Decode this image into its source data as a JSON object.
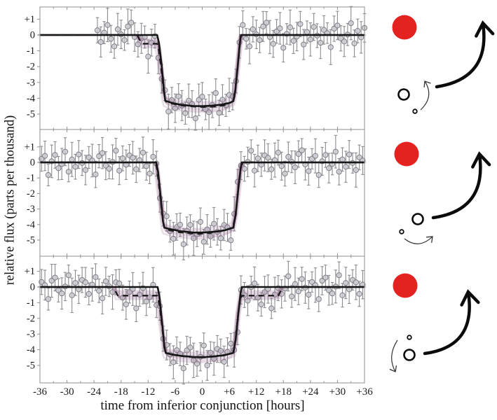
{
  "figure": {
    "xlabel": "time from inferior conjunction [hours]",
    "ylabel": "relative flux (parts per thousand)"
  },
  "colors": {
    "star_red": "#e42320",
    "point_fill": "#c9cad1",
    "point_stroke": "#7f7f86",
    "errorbar": "#8b8b91",
    "model_solid": "#141414",
    "model_dashed": "#1a1a1a",
    "frame": "#8f8f8f",
    "tick_text": "#1a1a1a",
    "band_colors": [
      "#8a5480",
      "#aa78a4",
      "#6d4167",
      "#b68bb1",
      "#94618c",
      "#7c4b74",
      "#a06b99",
      "#865179"
    ]
  },
  "chart_data": {
    "type": "scatter",
    "title": "",
    "xlabel": "time from inferior conjunction [hours]",
    "ylabel": "relative flux (parts per thousand)",
    "xlim": [
      -36,
      36
    ],
    "ylim": [
      -6,
      1.8
    ],
    "grid": false,
    "x_ticks": [
      -36,
      -30,
      -24,
      -18,
      -12,
      -6,
      0,
      6,
      12,
      18,
      24,
      30,
      36
    ],
    "x_tick_labels": [
      "-36",
      "-30",
      "-24",
      "-18",
      "-12",
      "-6",
      "0",
      "+6",
      "+12",
      "+18",
      "+24",
      "+30",
      "+36"
    ],
    "x_minor_ticks": [
      -33,
      -27,
      -21,
      -15,
      -9,
      -3,
      3,
      9,
      15,
      21,
      27,
      33
    ],
    "y_ticks": [
      1,
      0,
      -1,
      -2,
      -3,
      -4,
      -5
    ],
    "y_tick_labels": [
      "+1",
      "0",
      "-1",
      "-2",
      "-3",
      "-4",
      "-5"
    ],
    "panels": [
      {
        "name": "transit-1-moon-leading",
        "t_start": -23.25,
        "t_step": 0.75,
        "err_cycle": [
          0.8,
          0.95,
          0.7,
          1.05,
          0.85,
          0.75,
          1.0,
          0.9,
          0.65,
          1.1,
          0.8,
          0.9
        ],
        "flux": [
          0.3,
          -0.44,
          0.15,
          0.63,
          -0.24,
          -0.72,
          0.36,
          0.04,
          -0.32,
          0.54,
          0.78,
          -0.13,
          -0.59,
          -0.21,
          -0.13,
          -1.36,
          -0.48,
          -0.07,
          -1.45,
          -2.77,
          -3.49,
          -4.84,
          -4.11,
          -4.63,
          -3.88,
          -4.46,
          -4.94,
          -4.15,
          -4.37,
          -5.27,
          -4.1,
          -3.9,
          -4.7,
          -4.88,
          -4.42,
          -3.67,
          -4.92,
          -4.09,
          -4.45,
          -3.79,
          -3.88,
          -2.91,
          -0.46,
          0.63,
          -0.24,
          -0.72,
          0.36,
          0.04,
          -0.32,
          0.54,
          0.78,
          -0.13,
          -0.56,
          0.23,
          0.42,
          -0.81,
          0.07,
          0.48,
          -0.37,
          -0.1,
          0.69,
          -0.6,
          0.19,
          -0.28,
          0.51,
          -0.04,
          -0.49,
          0.32,
          0.12,
          -0.77,
          0.4,
          0.6,
          -0.21,
          -0.41,
          0.03,
          0.75,
          -0.53,
          0.26,
          -0.15,
          0.45
        ],
        "model_solid": [
          [
            -36,
            0
          ],
          [
            -10,
            0
          ],
          [
            -9.6,
            -0.5
          ],
          [
            -9,
            -1.9
          ],
          [
            -8.5,
            -3.5
          ],
          [
            -8.2,
            -4.15
          ],
          [
            -7,
            -4.27
          ],
          [
            -5,
            -4.4
          ],
          [
            -2,
            -4.49
          ],
          [
            0,
            -4.5
          ],
          [
            2,
            -4.47
          ],
          [
            4,
            -4.41
          ],
          [
            6,
            -4.3
          ],
          [
            6.9,
            -4.18
          ],
          [
            7.3,
            -3.6
          ],
          [
            7.8,
            -2.2
          ],
          [
            8.3,
            -0.6
          ],
          [
            8.6,
            0
          ],
          [
            36,
            0
          ]
        ],
        "model_dashed": [
          [
            -36,
            0
          ],
          [
            -14.4,
            0
          ],
          [
            -14,
            -0.25
          ],
          [
            -13.5,
            -0.5
          ],
          [
            -13,
            -0.55
          ],
          [
            -10,
            -0.55
          ],
          [
            -9.6,
            -1.0
          ],
          [
            -9,
            -2.4
          ],
          [
            -8.4,
            -3.9
          ],
          [
            -8.1,
            -4.2
          ],
          [
            -7,
            -4.32
          ],
          [
            -5,
            -4.44
          ],
          [
            -3,
            -4.5
          ],
          [
            -1,
            -4.54
          ],
          [
            1,
            -4.55
          ],
          [
            3,
            -4.52
          ],
          [
            5,
            -4.44
          ],
          [
            6.8,
            -4.2
          ],
          [
            7.3,
            -3.5
          ],
          [
            7.9,
            -1.9
          ],
          [
            8.4,
            -0.5
          ],
          [
            8.7,
            0
          ],
          [
            36,
            0
          ]
        ]
      },
      {
        "name": "transit-2-moon-crossing",
        "t_start": -35.65,
        "t_step": 0.75,
        "err_cycle": [
          0.8,
          0.95,
          0.7,
          1.05,
          0.85,
          0.75,
          1.0,
          0.9,
          0.65,
          1.1,
          0.8,
          0.9
        ],
        "flux": [
          0.23,
          0.42,
          -0.81,
          0.07,
          0.48,
          -0.37,
          -0.1,
          0.69,
          -0.6,
          0.19,
          -0.28,
          0.51,
          -0.04,
          -0.49,
          0.32,
          0.12,
          -0.77,
          0.4,
          0.6,
          -0.21,
          -0.41,
          0.03,
          0.75,
          -0.53,
          0.26,
          -0.15,
          0.45,
          0.3,
          -0.44,
          0.15,
          0.63,
          -0.24,
          -0.72,
          0.36,
          -0.08,
          -2.3,
          -3.29,
          -3.47,
          -4.43,
          -4.91,
          -4.16,
          -4.01,
          -5.27,
          -4.41,
          -4.02,
          -4.88,
          -4.62,
          -3.83,
          -5.11,
          -4.31,
          -4.76,
          -3.95,
          -4.47,
          -4.88,
          -4.03,
          -4.18,
          -5.01,
          -3.31,
          -1.25,
          -0.21,
          -0.41,
          0.03,
          0.75,
          -0.53,
          0.26,
          -0.15,
          0.45,
          0.3,
          -0.44,
          0.15,
          0.63,
          -0.24,
          -0.72,
          0.36,
          0.04,
          -0.32,
          0.54,
          0.78,
          -0.13,
          -0.56,
          0.23,
          0.42,
          -0.81,
          0.07,
          0.48,
          -0.37,
          -0.1,
          0.69,
          -0.6,
          0.19,
          -0.28,
          0.51,
          -0.04,
          -0.49,
          0.32,
          0.12
        ],
        "model_solid": [
          [
            -36,
            0
          ],
          [
            -10.2,
            0
          ],
          [
            -9.8,
            -0.6
          ],
          [
            -9.2,
            -2.3
          ],
          [
            -8.7,
            -3.8
          ],
          [
            -8.4,
            -4.2
          ],
          [
            -7,
            -4.3
          ],
          [
            -5,
            -4.42
          ],
          [
            -2,
            -4.51
          ],
          [
            -0.8,
            -4.52
          ],
          [
            1,
            -4.5
          ],
          [
            3,
            -4.45
          ],
          [
            5,
            -4.37
          ],
          [
            6.9,
            -4.2
          ],
          [
            7.4,
            -3.4
          ],
          [
            8,
            -1.7
          ],
          [
            8.5,
            -0.4
          ],
          [
            8.8,
            0
          ],
          [
            36,
            0
          ]
        ],
        "model_dashed": [
          [
            -36,
            0
          ],
          [
            -10.3,
            0
          ],
          [
            -9.9,
            -0.75
          ],
          [
            -9.2,
            -2.5
          ],
          [
            -8.6,
            -4.0
          ],
          [
            -8.2,
            -4.28
          ],
          [
            -7,
            -4.38
          ],
          [
            -5,
            -4.5
          ],
          [
            -2,
            -4.58
          ],
          [
            -0.5,
            -4.6
          ],
          [
            1.5,
            -4.55
          ],
          [
            3,
            -4.48
          ],
          [
            5,
            -4.38
          ],
          [
            6.8,
            -4.18
          ],
          [
            7.4,
            -3.3
          ],
          [
            8.1,
            -1.4
          ],
          [
            8.6,
            -0.25
          ],
          [
            9,
            0
          ],
          [
            36,
            0
          ]
        ]
      },
      {
        "name": "transit-3-moon-trailing",
        "t_start": -35.65,
        "t_step": 0.75,
        "err_cycle": [
          0.8,
          0.95,
          0.7,
          1.05,
          0.85,
          0.75,
          1.0,
          0.9,
          0.65,
          1.1,
          0.8,
          0.9
        ],
        "flux": [
          0.32,
          0.12,
          -0.77,
          0.4,
          0.6,
          -0.21,
          -0.41,
          0.03,
          0.75,
          -0.53,
          0.26,
          -0.15,
          0.45,
          0.3,
          -0.44,
          0.15,
          0.63,
          -0.24,
          -0.72,
          0.36,
          0.04,
          -0.32,
          0.3,
          0.23,
          -0.68,
          -1.11,
          -0.32,
          -0.13,
          -1.36,
          -0.48,
          -0.07,
          -0.92,
          -0.65,
          0.14,
          -1.15,
          -1.22,
          -3.3,
          -3.7,
          -4.31,
          -4.8,
          -4.03,
          -4.27,
          -5.19,
          -4.04,
          -3.86,
          -4.68,
          -4.89,
          -4.45,
          -3.73,
          -5.0,
          -4.19,
          -4.58,
          -3.95,
          -4.07,
          -4.77,
          -4.14,
          -3.61,
          -4.01,
          -2.88,
          -0.19,
          -0.51,
          -0.87,
          -0.01,
          0.23,
          -0.68,
          -1.11,
          -0.32,
          -0.13,
          -1.36,
          -0.48,
          -0.07,
          -0.44,
          -0.1,
          0.69,
          -0.6,
          0.19,
          -0.28,
          0.51,
          -0.04,
          -0.49,
          0.32,
          0.12,
          -0.77,
          0.4,
          0.6,
          -0.21,
          -0.41,
          0.03,
          0.75,
          -0.53,
          0.26,
          -0.15,
          0.45,
          0.3,
          -0.44,
          0.15
        ],
        "model_solid": [
          [
            -36,
            0
          ],
          [
            -9.9,
            0
          ],
          [
            -9.5,
            -0.6
          ],
          [
            -8.9,
            -2.3
          ],
          [
            -8.4,
            -3.8
          ],
          [
            -8.1,
            -4.2
          ],
          [
            -7,
            -4.28
          ],
          [
            -5,
            -4.38
          ],
          [
            -2,
            -4.46
          ],
          [
            -0.6,
            -4.48
          ],
          [
            1,
            -4.46
          ],
          [
            3,
            -4.41
          ],
          [
            5,
            -4.34
          ],
          [
            6.9,
            -4.2
          ],
          [
            7.4,
            -3.4
          ],
          [
            8,
            -1.7
          ],
          [
            8.5,
            -0.4
          ],
          [
            8.8,
            0
          ],
          [
            36,
            0
          ]
        ],
        "model_dashed": [
          [
            -36,
            0
          ],
          [
            -19.6,
            0
          ],
          [
            -19.2,
            -0.3
          ],
          [
            -18.7,
            -0.55
          ],
          [
            -10,
            -0.55
          ],
          [
            -9.5,
            -1.1
          ],
          [
            -8.9,
            -2.6
          ],
          [
            -8.3,
            -4.0
          ],
          [
            -8,
            -4.22
          ],
          [
            -7,
            -4.3
          ],
          [
            -5,
            -4.4
          ],
          [
            -2,
            -4.48
          ],
          [
            -0.6,
            -4.5
          ],
          [
            1,
            -4.48
          ],
          [
            3,
            -4.43
          ],
          [
            5,
            -4.36
          ],
          [
            6.9,
            -4.2
          ],
          [
            7.4,
            -3.3
          ],
          [
            8,
            -1.6
          ],
          [
            8.5,
            -0.7
          ],
          [
            8.8,
            -0.56
          ],
          [
            9.5,
            -0.55
          ],
          [
            16.9,
            -0.55
          ],
          [
            17.3,
            -0.3
          ],
          [
            17.8,
            0
          ],
          [
            36,
            0
          ]
        ]
      }
    ]
  }
}
